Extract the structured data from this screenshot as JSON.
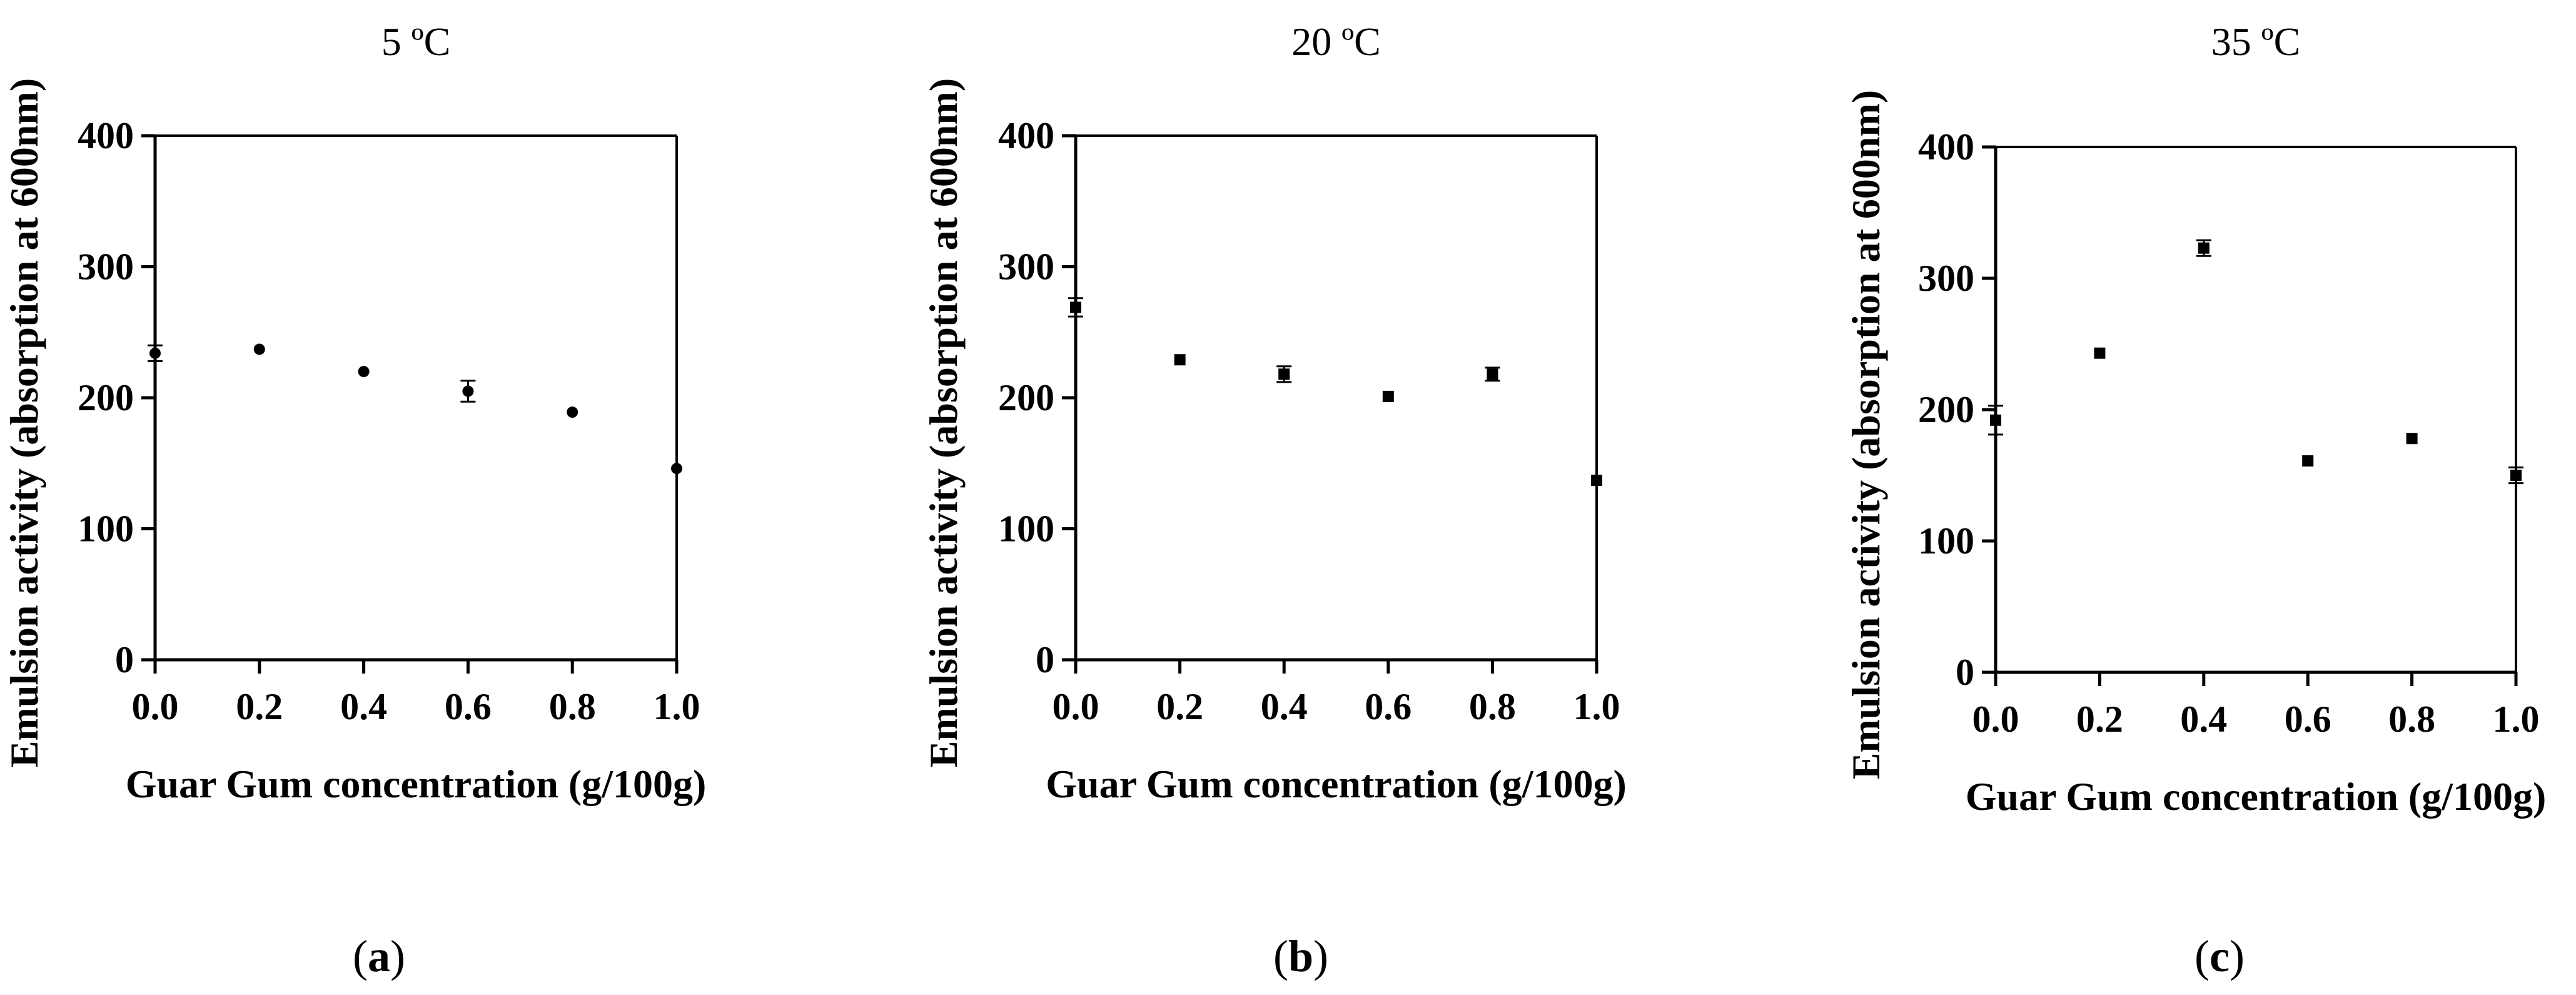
{
  "chart_data": [
    {
      "type": "scatter",
      "title": "5 ºC",
      "panel_label": "a",
      "xlabel": "Guar Gum concentration (g/100g)",
      "ylabel": "Emulsion activity (absorption at 600nm)",
      "xlim": [
        0,
        1
      ],
      "ylim": [
        0,
        400
      ],
      "xticks": [
        "0.0",
        "0.2",
        "0.4",
        "0.6",
        "0.8",
        "1.0"
      ],
      "yticks": [
        "0",
        "100",
        "200",
        "300",
        "400"
      ],
      "marker": "circle",
      "grid": false,
      "x": [
        0.0,
        0.2,
        0.4,
        0.6,
        0.8,
        1.0
      ],
      "y": [
        234,
        237,
        220,
        205,
        189,
        146
      ],
      "error": [
        6,
        2,
        2,
        8,
        2,
        2
      ]
    },
    {
      "type": "scatter",
      "title": "20 ºC",
      "panel_label": "b",
      "xlabel": "Guar Gum concentration (g/100g)",
      "ylabel": "Emulsion activity (absorption at 600nm)",
      "xlim": [
        0,
        1
      ],
      "ylim": [
        0,
        400
      ],
      "xticks": [
        "0.0",
        "0.2",
        "0.4",
        "0.6",
        "0.8",
        "1.0"
      ],
      "yticks": [
        "0",
        "100",
        "200",
        "300",
        "400"
      ],
      "marker": "square",
      "grid": false,
      "x": [
        0.0,
        0.2,
        0.4,
        0.6,
        0.8,
        1.0
      ],
      "y": [
        269,
        229,
        218,
        201,
        218,
        137
      ],
      "error": [
        7,
        2,
        6,
        2,
        5,
        2
      ]
    },
    {
      "type": "scatter",
      "title": "35 ºC",
      "panel_label": "c",
      "xlabel": "Guar Gum concentration (g/100g)",
      "ylabel": "Emulsion activity (absorption at 600nm)",
      "xlim": [
        0,
        1
      ],
      "ylim": [
        0,
        400
      ],
      "xticks": [
        "0.0",
        "0.2",
        "0.4",
        "0.6",
        "0.8",
        "1.0"
      ],
      "yticks": [
        "0",
        "100",
        "200",
        "300",
        "400"
      ],
      "marker": "square",
      "grid": false,
      "x": [
        0.0,
        0.2,
        0.4,
        0.6,
        0.8,
        1.0
      ],
      "y": [
        192,
        243,
        323,
        161,
        178,
        150
      ],
      "error": [
        11,
        2,
        6,
        2,
        2,
        6
      ]
    }
  ]
}
